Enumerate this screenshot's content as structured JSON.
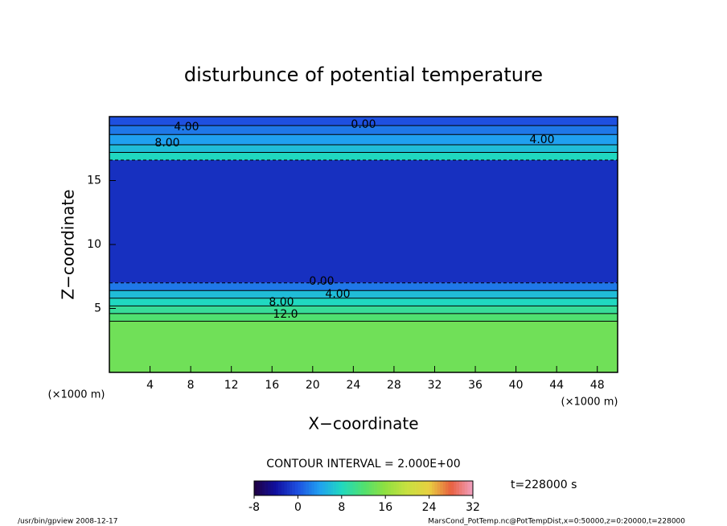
{
  "chart_data": {
    "type": "contour-profile",
    "title": "disturbunce of potential temperature",
    "x_label": "X−coordinate",
    "y_label": "Z−coordinate",
    "x_unit_left": "(×1000 m)",
    "x_unit_right": "(×1000 m)",
    "contour_interval": "CONTOUR INTERVAL = 2.000E+00",
    "time_label": "t=228000 s",
    "footer_left": "/usr/bin/gpview  2008-12-17",
    "footer_right": "MarsCond_PotTemp.nc@PotTempDist,x=0:50000,z=0:20000,t=228000",
    "xlim": [
      0,
      50
    ],
    "xticks": [
      4,
      8,
      12,
      16,
      20,
      24,
      28,
      32,
      36,
      40,
      44,
      48
    ],
    "ylim": [
      0,
      20
    ],
    "yticks": [
      5,
      10,
      15
    ],
    "z_edges": [
      0,
      4,
      4.6,
      5.2,
      5.8,
      6.4,
      7,
      16.6,
      17.2,
      17.8,
      18.6,
      19.3,
      20
    ],
    "values": [
      14,
      12,
      10,
      8,
      6,
      2,
      -2,
      8,
      6,
      4,
      2,
      0
    ],
    "contour_labels": [
      "4.00",
      "0.00",
      "8.00",
      "4.00",
      "0.00",
      "4.00",
      "8.00",
      "12.0"
    ],
    "colorbar": {
      "lim": [
        -8,
        32
      ],
      "ticks": [
        -8,
        0,
        8,
        16,
        24,
        32
      ],
      "colors": [
        "#200040",
        "#1010a0",
        "#1e50e0",
        "#20a0f0",
        "#20d8c0",
        "#50e070",
        "#90e040",
        "#c8e040",
        "#e8d040",
        "#e86040",
        "#f0a0c0"
      ]
    }
  }
}
